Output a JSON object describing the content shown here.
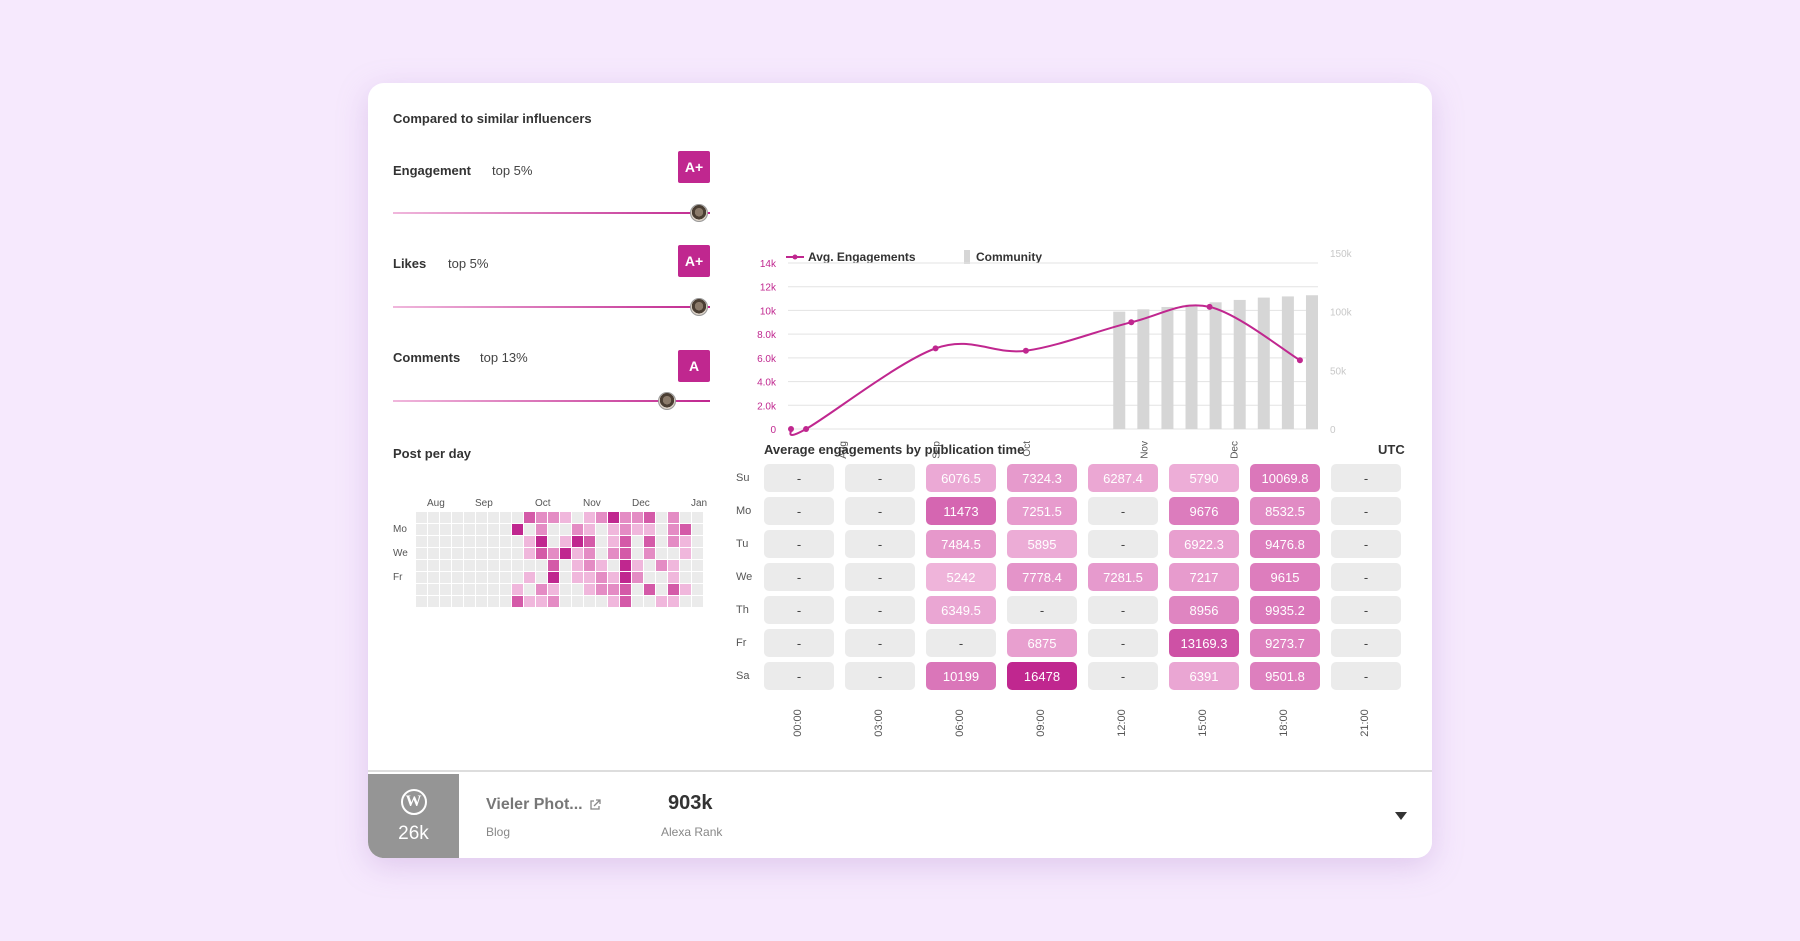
{
  "card": {
    "title": "Compared to similar influencers"
  },
  "metrics": [
    {
      "label": "Engagement",
      "rank": "top 5%",
      "grade": "A+",
      "fraction": 0.96
    },
    {
      "label": "Likes",
      "rank": "top 5%",
      "grade": "A+",
      "fraction": 0.96
    },
    {
      "label": "Comments",
      "rank": "top 13%",
      "grade": "A",
      "fraction": 0.86
    }
  ],
  "posts_per_day": {
    "title": "Post per day",
    "months": [
      "Aug",
      "Sep",
      "Oct",
      "Nov",
      "Dec",
      "Jan"
    ],
    "days": [
      "Mo",
      "We",
      "Fr"
    ]
  },
  "chart_data": {
    "type": "line",
    "legend": [
      "Avg. Engagements",
      "Community"
    ],
    "x_labels": [
      "Aug",
      "Sep",
      "Oct",
      "Nov",
      "Dec"
    ],
    "y_left_ticks": [
      "0",
      "2.0k",
      "4.0k",
      "6.0k",
      "8.0k",
      "10k",
      "12k",
      "14k"
    ],
    "y_right_ticks": [
      "0",
      "50k",
      "100k",
      "150k"
    ],
    "ylim_left": [
      0,
      14000
    ],
    "ylim_right": [
      0,
      150000
    ],
    "series": [
      {
        "name": "Avg. Engagements",
        "color": "#c0278f",
        "x": [
          "2023-07-15",
          "2023-07-20",
          "2023-09-01",
          "2023-10-01",
          "2023-11-05",
          "2023-12-01",
          "2023-12-31"
        ],
        "values": [
          0,
          0,
          6800,
          6600,
          9000,
          10300,
          5800
        ]
      },
      {
        "name": "Community",
        "color": "#d6d6d6",
        "x": [
          "2023-11-01",
          "2023-11-09",
          "2023-11-17",
          "2023-11-25",
          "2023-12-03",
          "2023-12-11",
          "2023-12-19",
          "2023-12-27",
          "2024-01-04"
        ],
        "values": [
          100000,
          102000,
          104000,
          106000,
          108000,
          110000,
          112000,
          113000,
          114000
        ]
      }
    ]
  },
  "heatmap": {
    "title": "Average engagements by publication time",
    "timezone": "UTC",
    "days": [
      "Su",
      "Mo",
      "Tu",
      "We",
      "Th",
      "Fr",
      "Sa"
    ],
    "times": [
      "00:00",
      "03:00",
      "06:00",
      "09:00",
      "12:00",
      "15:00",
      "18:00",
      "21:00"
    ],
    "max": 16478,
    "values": [
      [
        "-",
        "-",
        "6076.5",
        "7324.3",
        "6287.4",
        "5790",
        "10069.8",
        "-"
      ],
      [
        "-",
        "-",
        "11473",
        "7251.5",
        "-",
        "9676",
        "8532.5",
        "-"
      ],
      [
        "-",
        "-",
        "7484.5",
        "5895",
        "-",
        "6922.3",
        "9476.8",
        "-"
      ],
      [
        "-",
        "-",
        "5242",
        "7778.4",
        "7281.5",
        "7217",
        "9615",
        "-"
      ],
      [
        "-",
        "-",
        "6349.5",
        "-",
        "-",
        "8956",
        "9935.2",
        "-"
      ],
      [
        "-",
        "-",
        "-",
        "6875",
        "-",
        "13169.3",
        "9273.7",
        "-"
      ],
      [
        "-",
        "-",
        "10199",
        "16478",
        "-",
        "6391",
        "9501.8",
        "-"
      ]
    ]
  },
  "footer": {
    "platform_icon": "wordpress-icon",
    "followers": "26k",
    "name": "Vieler Phot...",
    "type": "Blog",
    "rank_value": "903k",
    "rank_label": "Alexa Rank"
  },
  "colors": {
    "accent": "#c0278f",
    "empty": "#ebebeb",
    "bar": "#d6d6d6"
  }
}
